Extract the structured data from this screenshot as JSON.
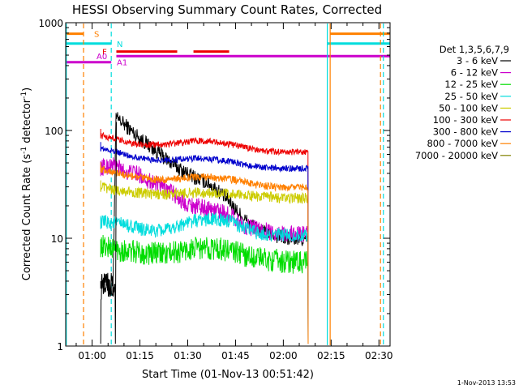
{
  "chart_data": {
    "type": "line",
    "title": "HESSI Observing Summary Count Rates, Corrected",
    "xlabel": "Start Time (01-Nov-13 00:51:42)",
    "ylabel_main": "Corrected Count Rate (s",
    "ylabel_sup1": "-1",
    "ylabel_mid": " detector",
    "ylabel_sup2": "-1",
    "ylabel_end": ")",
    "yscale": "log",
    "ylim": [
      1,
      1000
    ],
    "xlim_minutes": [
      51.7,
      153.5
    ],
    "x_ticks": [
      {
        "label": "01:00",
        "t": 60
      },
      {
        "label": "01:15",
        "t": 75
      },
      {
        "label": "01:30",
        "t": 90
      },
      {
        "label": "01:45",
        "t": 105
      },
      {
        "label": "02:00",
        "t": 120
      },
      {
        "label": "02:15",
        "t": 135
      },
      {
        "label": "02:30",
        "t": 150
      }
    ],
    "y_ticks": [
      {
        "label": "1",
        "v": 1
      },
      {
        "label": "10",
        "v": 10
      },
      {
        "label": "100",
        "v": 100
      },
      {
        "label": "1000",
        "v": 1000
      }
    ],
    "legend_title": "Det 1,3,5,6,7,9",
    "series": [
      {
        "name": "3 - 6 keV",
        "color": "#000000",
        "points": [
          [
            62.7,
            4.0
          ],
          [
            65,
            4.0
          ],
          [
            66.5,
            3.0
          ],
          [
            67.5,
            130
          ],
          [
            70,
            115
          ],
          [
            73,
            95
          ],
          [
            76,
            80
          ],
          [
            80,
            65
          ],
          [
            84,
            52
          ],
          [
            88,
            43
          ],
          [
            92,
            37
          ],
          [
            96,
            33
          ],
          [
            100,
            27
          ],
          [
            103,
            22
          ],
          [
            106,
            17
          ],
          [
            109,
            14
          ],
          [
            112,
            12
          ],
          [
            115,
            11
          ],
          [
            118,
            10.5
          ],
          [
            121,
            10
          ],
          [
            124,
            9.8
          ],
          [
            126,
            9.8
          ],
          [
            127,
            9.5
          ],
          [
            127.8,
            9.3
          ]
        ]
      },
      {
        "name": "6 - 12 keV",
        "color": "#cc00cc",
        "points": [
          [
            62.7,
            45
          ],
          [
            67,
            48
          ],
          [
            70,
            42
          ],
          [
            74,
            40
          ],
          [
            78,
            34
          ],
          [
            82,
            30
          ],
          [
            85,
            27
          ],
          [
            88,
            22
          ],
          [
            92,
            20
          ],
          [
            96,
            19
          ],
          [
            100,
            18
          ],
          [
            104,
            16
          ],
          [
            108,
            13
          ],
          [
            112,
            12
          ],
          [
            116,
            11.5
          ],
          [
            120,
            11
          ],
          [
            124,
            11
          ],
          [
            127.8,
            11
          ]
        ]
      },
      {
        "name": "12 - 25 keV",
        "color": "#00dd00",
        "points": [
          [
            62.7,
            8.5
          ],
          [
            67,
            8.0
          ],
          [
            72,
            7.5
          ],
          [
            76,
            7.3
          ],
          [
            80,
            7.2
          ],
          [
            84,
            7.2
          ],
          [
            88,
            7.6
          ],
          [
            92,
            8.0
          ],
          [
            96,
            8.1
          ],
          [
            100,
            8.0
          ],
          [
            104,
            7.6
          ],
          [
            108,
            7.0
          ],
          [
            112,
            6.6
          ],
          [
            116,
            6.3
          ],
          [
            120,
            6.1
          ],
          [
            124,
            6.0
          ],
          [
            127.8,
            6.0
          ]
        ]
      },
      {
        "name": "25 - 50 keV",
        "color": "#00dddd",
        "points": [
          [
            62.7,
            14
          ],
          [
            67,
            14
          ],
          [
            72,
            13
          ],
          [
            76,
            12
          ],
          [
            80,
            11.6
          ],
          [
            84,
            12
          ],
          [
            88,
            13.5
          ],
          [
            92,
            14.5
          ],
          [
            96,
            15
          ],
          [
            100,
            14.8
          ],
          [
            104,
            14
          ],
          [
            108,
            12.5
          ],
          [
            112,
            11.2
          ],
          [
            116,
            10.8
          ],
          [
            120,
            10.6
          ],
          [
            124,
            10.5
          ],
          [
            127.8,
            10.4
          ]
        ]
      },
      {
        "name": "50 - 100 keV",
        "color": "#cccc00",
        "points": [
          [
            62.7,
            30
          ],
          [
            67,
            28
          ],
          [
            72,
            27
          ],
          [
            76,
            26
          ],
          [
            80,
            25.5
          ],
          [
            84,
            25.5
          ],
          [
            88,
            26
          ],
          [
            92,
            26.5
          ],
          [
            96,
            26.5
          ],
          [
            100,
            26.2
          ],
          [
            104,
            25.5
          ],
          [
            108,
            25
          ],
          [
            112,
            24.2
          ],
          [
            116,
            23.8
          ],
          [
            120,
            23.5
          ],
          [
            124,
            23.5
          ],
          [
            127.8,
            23.5
          ]
        ]
      },
      {
        "name": "100 - 300 keV",
        "color": "#ee0000",
        "points": [
          [
            62.7,
            90
          ],
          [
            67,
            84
          ],
          [
            72,
            76
          ],
          [
            76,
            73
          ],
          [
            80,
            74
          ],
          [
            84,
            75
          ],
          [
            88,
            77
          ],
          [
            92,
            80
          ],
          [
            96,
            80
          ],
          [
            100,
            77
          ],
          [
            104,
            74
          ],
          [
            108,
            70
          ],
          [
            112,
            66
          ],
          [
            116,
            64
          ],
          [
            120,
            63
          ],
          [
            124,
            63
          ],
          [
            127.8,
            63
          ]
        ]
      },
      {
        "name": "300 - 800 keV",
        "color": "#0000cc",
        "points": [
          [
            62.7,
            68
          ],
          [
            67,
            64
          ],
          [
            72,
            58
          ],
          [
            76,
            55
          ],
          [
            80,
            53
          ],
          [
            84,
            53
          ],
          [
            88,
            54
          ],
          [
            92,
            55
          ],
          [
            96,
            55
          ],
          [
            100,
            53
          ],
          [
            104,
            51
          ],
          [
            108,
            48
          ],
          [
            112,
            46
          ],
          [
            116,
            45
          ],
          [
            120,
            44.5
          ],
          [
            124,
            44.5
          ],
          [
            127.8,
            44.5
          ]
        ]
      },
      {
        "name": "800 - 7000 keV",
        "color": "#ff8000",
        "points": [
          [
            62.7,
            44
          ],
          [
            67,
            41
          ],
          [
            72,
            38
          ],
          [
            76,
            36
          ],
          [
            80,
            35
          ],
          [
            84,
            35
          ],
          [
            88,
            36
          ],
          [
            92,
            37
          ],
          [
            96,
            37
          ],
          [
            100,
            36
          ],
          [
            104,
            35
          ],
          [
            108,
            33
          ],
          [
            112,
            31
          ],
          [
            116,
            30
          ],
          [
            120,
            29.8
          ],
          [
            124,
            29.6
          ],
          [
            127.8,
            29.6
          ]
        ]
      },
      {
        "name": "7000 - 20000 keV",
        "color": "#808000",
        "points": []
      }
    ],
    "flags": [
      {
        "label": "S",
        "color": "#ff8000",
        "level": 790,
        "segments": [
          [
            51.7,
            57.3
          ],
          [
            134.7,
            153.5
          ]
        ]
      },
      {
        "label": "N",
        "color": "#00dddd",
        "level": 640,
        "segments": [
          [
            51.7,
            66.0
          ],
          [
            133.8,
            153.5
          ]
        ]
      },
      {
        "label": "F",
        "color": "#ee0000",
        "level": 540,
        "segments": [
          [
            67.6,
            86.7
          ],
          [
            91.8,
            103.0
          ]
        ]
      },
      {
        "label": "A0",
        "color": "#cc00cc",
        "level": 490,
        "segments": [
          [
            67.6,
            153.5
          ]
        ]
      },
      {
        "label": "A1",
        "color": "#cc00cc",
        "level": 430,
        "segments": [
          [
            51.7,
            66.0
          ]
        ]
      }
    ],
    "vlines": [
      {
        "t": 51.9,
        "color": "#00dddd",
        "dash": false
      },
      {
        "t": 57.3,
        "color": "#ff8000",
        "dash": true
      },
      {
        "t": 66.0,
        "color": "#00dddd",
        "dash": true
      },
      {
        "t": 133.8,
        "color": "#00dddd",
        "dash": false
      },
      {
        "t": 134.7,
        "color": "#ff8000",
        "dash": false
      },
      {
        "t": 150.5,
        "color": "#ff8000",
        "dash": true
      },
      {
        "t": 151.4,
        "color": "#00dddd",
        "dash": true
      }
    ],
    "timestamp": "1-Nov-2013 13:53"
  }
}
